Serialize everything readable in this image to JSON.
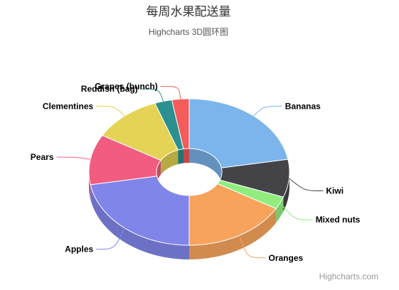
{
  "chart_data": {
    "type": "pie",
    "variant": "3d-donut",
    "title": "每周水果配送量",
    "subtitle": "Highcharts 3D圆环图",
    "credits": "Highcharts.com",
    "categories": [
      "Bananas",
      "Kiwi",
      "Mixed nuts",
      "Oranges",
      "Apples",
      "Pears",
      "Clementines",
      "Reddish (bag)",
      "Grapes (bunch)"
    ],
    "values": [
      8,
      3,
      1,
      6,
      8,
      4,
      4,
      1,
      1
    ],
    "colors": [
      "#7cb5ec",
      "#434348",
      "#90ed7d",
      "#f7a35c",
      "#8085e9",
      "#f15c80",
      "#e4d354",
      "#2b908f",
      "#f45b5b"
    ]
  }
}
